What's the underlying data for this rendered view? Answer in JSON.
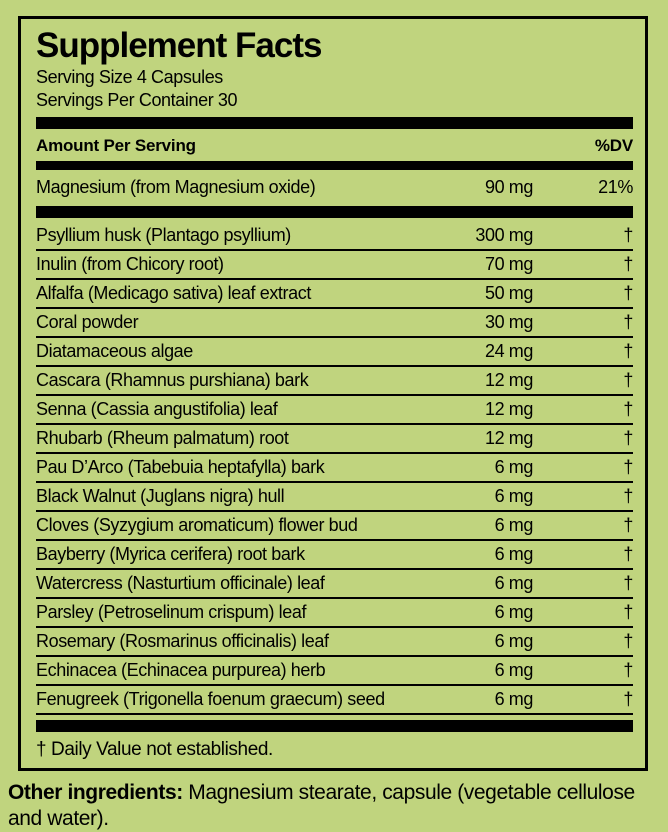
{
  "colors": {
    "background": "#c0d47e",
    "text": "#000000",
    "bar": "#000000"
  },
  "label": {
    "title": "Supplement Facts",
    "serving_size": "Serving Size 4 Capsules",
    "servings_per_container": "Servings Per Container 30",
    "header": {
      "amount_per_serving": "Amount Per Serving",
      "dv": "%DV"
    },
    "magnesium_row": {
      "name": "Magnesium (from Magnesium oxide)",
      "amount": "90 mg",
      "dv": "21%"
    },
    "rows": [
      {
        "name": "Psyllium husk (Plantago psyllium)",
        "amount": "300 mg",
        "dv": "†"
      },
      {
        "name": "Inulin (from Chicory root)",
        "amount": "70 mg",
        "dv": "†"
      },
      {
        "name": "Alfalfa (Medicago sativa) leaf extract",
        "amount": "50 mg",
        "dv": "†"
      },
      {
        "name": "Coral powder",
        "amount": "30 mg",
        "dv": "†"
      },
      {
        "name": "Diatamaceous algae",
        "amount": "24 mg",
        "dv": "†"
      },
      {
        "name": "Cascara (Rhamnus purshiana) bark",
        "amount": "12 mg",
        "dv": "†"
      },
      {
        "name": "Senna (Cassia angustifolia) leaf",
        "amount": "12 mg",
        "dv": "†"
      },
      {
        "name": "Rhubarb (Rheum palmatum) root",
        "amount": "12 mg",
        "dv": "†"
      },
      {
        "name": "Pau D’Arco (Tabebuia heptafylla) bark",
        "amount": "6 mg",
        "dv": "†"
      },
      {
        "name": "Black Walnut (Juglans nigra) hull",
        "amount": "6 mg",
        "dv": "†"
      },
      {
        "name": "Cloves (Syzygium aromaticum) flower bud",
        "amount": "6 mg",
        "dv": "†"
      },
      {
        "name": "Bayberry (Myrica cerifera) root bark",
        "amount": "6 mg",
        "dv": "†"
      },
      {
        "name": "Watercress (Nasturtium officinale) leaf",
        "amount": "6 mg",
        "dv": "†"
      },
      {
        "name": "Parsley (Petroselinum crispum) leaf",
        "amount": "6 mg",
        "dv": "†"
      },
      {
        "name": "Rosemary (Rosmarinus officinalis) leaf",
        "amount": "6 mg",
        "dv": "†"
      },
      {
        "name": "Echinacea (Echinacea purpurea) herb",
        "amount": "6 mg",
        "dv": "†"
      },
      {
        "name": "Fenugreek (Trigonella foenum graecum) seed",
        "amount": "6 mg",
        "dv": "†"
      }
    ],
    "footnote": "† Daily Value not established.",
    "other_ingredients_label": "Other ingredients:",
    "other_ingredients_text": " Magnesium stearate, capsule (vegetable cellulose and water)."
  }
}
